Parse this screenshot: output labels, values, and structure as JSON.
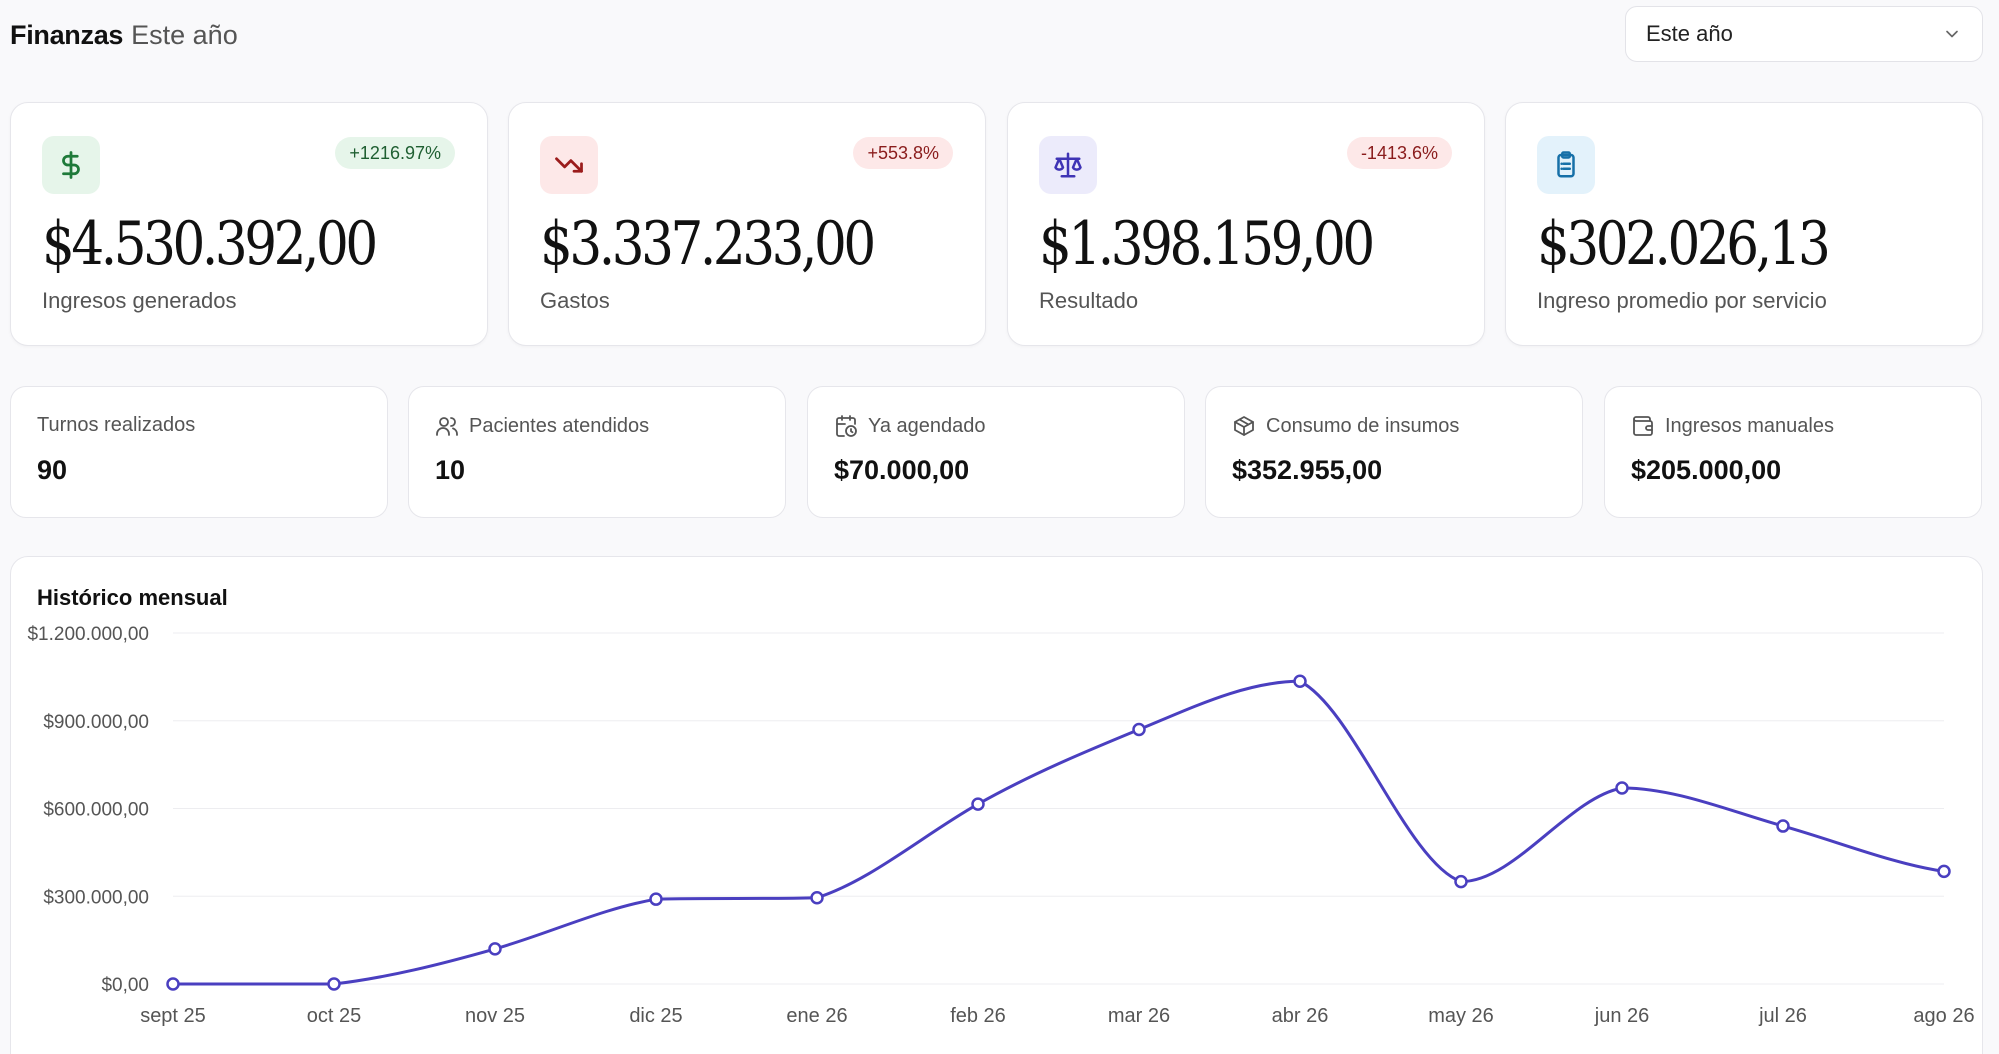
{
  "header": {
    "title": "Finanzas",
    "subtitle": "Este año"
  },
  "period_select": {
    "value": "Este año",
    "icon": "chevron-down-icon"
  },
  "kpis": [
    {
      "value": "$4.530.392,00",
      "label": "Ingresos generados",
      "badge": "+1216.97%",
      "icon": "dollar-icon",
      "icon_bg": "#e6f5ea",
      "icon_color": "#1f7a3a",
      "badge_bg": "#e6f5ea",
      "badge_color": "#1f5f32"
    },
    {
      "value": "$3.337.233,00",
      "label": "Gastos",
      "badge": "+553.8%",
      "icon": "trending-down-icon",
      "icon_bg": "#fde8e8",
      "icon_color": "#9b1c1c",
      "badge_bg": "#fde8e8",
      "badge_color": "#8a1c1c"
    },
    {
      "value": "$1.398.159,00",
      "label": "Resultado",
      "badge": "-1413.6%",
      "icon": "scale-icon",
      "icon_bg": "#ecebfb",
      "icon_color": "#3f34b5",
      "badge_bg": "#fde8e8",
      "badge_color": "#8a1c1c"
    },
    {
      "value": "$302.026,13",
      "label": "Ingreso promedio por servicio",
      "badge": "",
      "icon": "clipboard-list-icon",
      "icon_bg": "#e3f2fb",
      "icon_color": "#1670a8",
      "badge_bg": "",
      "badge_color": ""
    }
  ],
  "stats": [
    {
      "label": "Turnos realizados",
      "value": "90",
      "icon": ""
    },
    {
      "label": "Pacientes atendidos",
      "value": "10",
      "icon": "users-icon"
    },
    {
      "label": "Ya agendado",
      "value": "$70.000,00",
      "icon": "calendar-clock-icon"
    },
    {
      "label": "Consumo de insumos",
      "value": "$352.955,00",
      "icon": "package-icon"
    },
    {
      "label": "Ingresos manuales",
      "value": "$205.000,00",
      "icon": "wallet-icon"
    }
  ],
  "chart": {
    "title": "Histórico mensual",
    "color": "#4a3fc0"
  },
  "chart_data": {
    "type": "line",
    "title": "Histórico mensual",
    "x": [
      "sept 25",
      "oct 25",
      "nov 25",
      "dic 25",
      "ene 26",
      "feb 26",
      "mar 26",
      "abr 26",
      "may 26",
      "jun 26",
      "jul 26",
      "ago 26"
    ],
    "series": [
      {
        "values": [
          0,
          0,
          120000,
          290000,
          295000,
          615000,
          870000,
          1035000,
          350000,
          670000,
          540000,
          385000
        ]
      }
    ],
    "y_ticks": [
      "$0,00",
      "$300.000,00",
      "$600.000,00",
      "$900.000,00",
      "$1.200.000,00"
    ],
    "y_tick_values": [
      0,
      300000,
      600000,
      900000,
      1200000
    ],
    "ylim": [
      0,
      1200000
    ],
    "grid": true,
    "legend": "none"
  }
}
